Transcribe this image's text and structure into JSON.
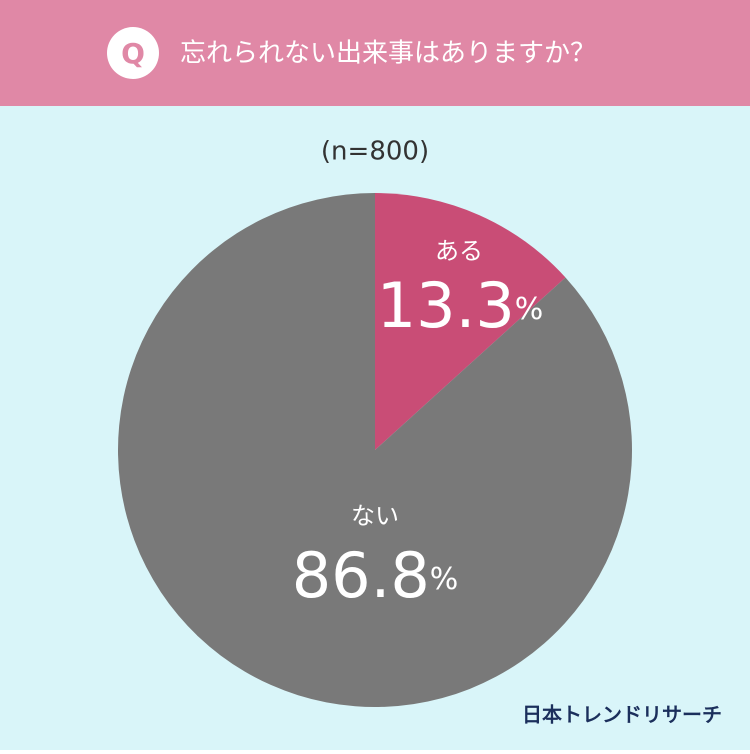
{
  "chart_data": {
    "type": "pie",
    "badge": "Q",
    "title": "忘れられない出来事はありますか？",
    "subtitle": "(n=800)",
    "categories": [
      "ある",
      "ない"
    ],
    "values": [
      13.3,
      86.8
    ],
    "value_labels": [
      "13.3%",
      "86.8%"
    ],
    "colors": [
      "#c94d76",
      "#797979"
    ],
    "brand": "日本トレンドリサーチ"
  }
}
